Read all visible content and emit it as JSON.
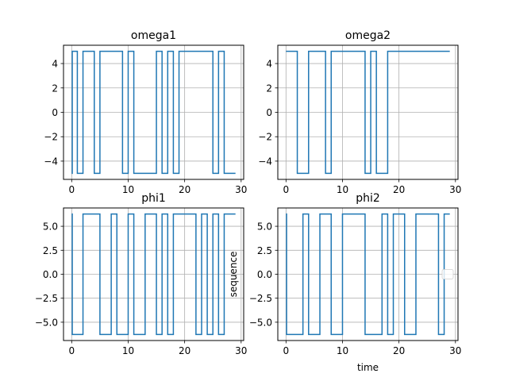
{
  "figure": {
    "width": 640,
    "height": 480
  },
  "chart_data": [
    {
      "type": "line",
      "step": true,
      "title": "omega1",
      "xlabel": "",
      "ylabel": "",
      "xlim": [
        -1.45,
        30.45
      ],
      "ylim": [
        -5.5,
        5.5
      ],
      "xticks": [
        0,
        10,
        20,
        30
      ],
      "xticklabels": [
        "0",
        "10",
        "20",
        "30"
      ],
      "yticks": [
        4,
        2,
        0,
        -2,
        -4
      ],
      "yticklabels": [
        "4",
        "2",
        "0",
        "−2",
        "−4"
      ],
      "grid": true,
      "color": "#1f77b4",
      "x": [
        0,
        0.1,
        1,
        2,
        4,
        5,
        9,
        10,
        11,
        15,
        16,
        17,
        18,
        19,
        25,
        26,
        27,
        29
      ],
      "values": [
        -5,
        5,
        -5,
        5,
        -5,
        5,
        -5,
        5,
        -5,
        5,
        -5,
        5,
        -5,
        5,
        -5,
        5,
        -5,
        -5
      ]
    },
    {
      "type": "line",
      "step": true,
      "title": "omega2",
      "xlabel": "",
      "ylabel": "",
      "xlim": [
        -1.45,
        30.45
      ],
      "ylim": [
        -5.5,
        5.5
      ],
      "xticks": [
        0,
        10,
        20,
        30
      ],
      "xticklabels": [
        "0",
        "10",
        "20",
        "30"
      ],
      "yticks": [
        4,
        2,
        0,
        -2,
        -4
      ],
      "yticklabels": [
        "4",
        "2",
        "0",
        "−2",
        "−4"
      ],
      "grid": true,
      "color": "#1f77b4",
      "x": [
        0,
        2,
        4,
        7,
        8,
        14,
        15,
        16,
        18,
        29
      ],
      "values": [
        5,
        -5,
        5,
        -5,
        5,
        -5,
        5,
        -5,
        5,
        5
      ]
    },
    {
      "type": "line",
      "step": true,
      "title": "phi1",
      "xlabel": "",
      "ylabel": "",
      "xlim": [
        -1.45,
        30.45
      ],
      "ylim": [
        -6.91,
        6.91
      ],
      "xticks": [
        0,
        10,
        20,
        30
      ],
      "xticklabels": [
        "0",
        "10",
        "20",
        "30"
      ],
      "yticks": [
        5.0,
        2.5,
        0.0,
        -2.5,
        -5.0
      ],
      "yticklabels": [
        "5.0",
        "2.5",
        "0.0",
        "−2.5",
        "−5.0"
      ],
      "grid": true,
      "color": "#1f77b4",
      "x": [
        0,
        0.1,
        2,
        5,
        7,
        8,
        10,
        11,
        13,
        15,
        16,
        17,
        18,
        19,
        22,
        23,
        24,
        25,
        26,
        27,
        29
      ],
      "values": [
        6.28,
        -6.28,
        6.28,
        -6.28,
        6.28,
        -6.28,
        6.28,
        -6.28,
        6.28,
        -6.28,
        6.28,
        -6.28,
        6.28,
        6.28,
        -6.28,
        6.28,
        -6.28,
        6.28,
        -6.28,
        6.28,
        6.28
      ]
    },
    {
      "type": "line",
      "step": true,
      "title": "phi2",
      "xlabel": "time",
      "ylabel": "sequence",
      "xlim": [
        -1.45,
        30.45
      ],
      "ylim": [
        -6.91,
        6.91
      ],
      "xticks": [
        0,
        10,
        20,
        30
      ],
      "xticklabels": [
        "0",
        "10",
        "20",
        "30"
      ],
      "yticks": [
        5.0,
        2.5,
        0.0,
        -2.5,
        -5.0
      ],
      "yticklabels": [
        "5.0",
        "2.5",
        "0.0",
        "−2.5",
        "−5.0"
      ],
      "grid": true,
      "legend": "right",
      "color": "#1f77b4",
      "x": [
        0,
        0.1,
        3,
        4,
        6,
        8,
        10,
        14,
        17,
        18,
        19,
        21,
        23,
        27,
        28,
        29
      ],
      "values": [
        6.28,
        -6.28,
        6.28,
        -6.28,
        6.28,
        -6.28,
        6.28,
        -6.28,
        6.28,
        -6.28,
        6.28,
        -6.28,
        6.28,
        -6.28,
        6.28,
        6.28
      ]
    }
  ]
}
